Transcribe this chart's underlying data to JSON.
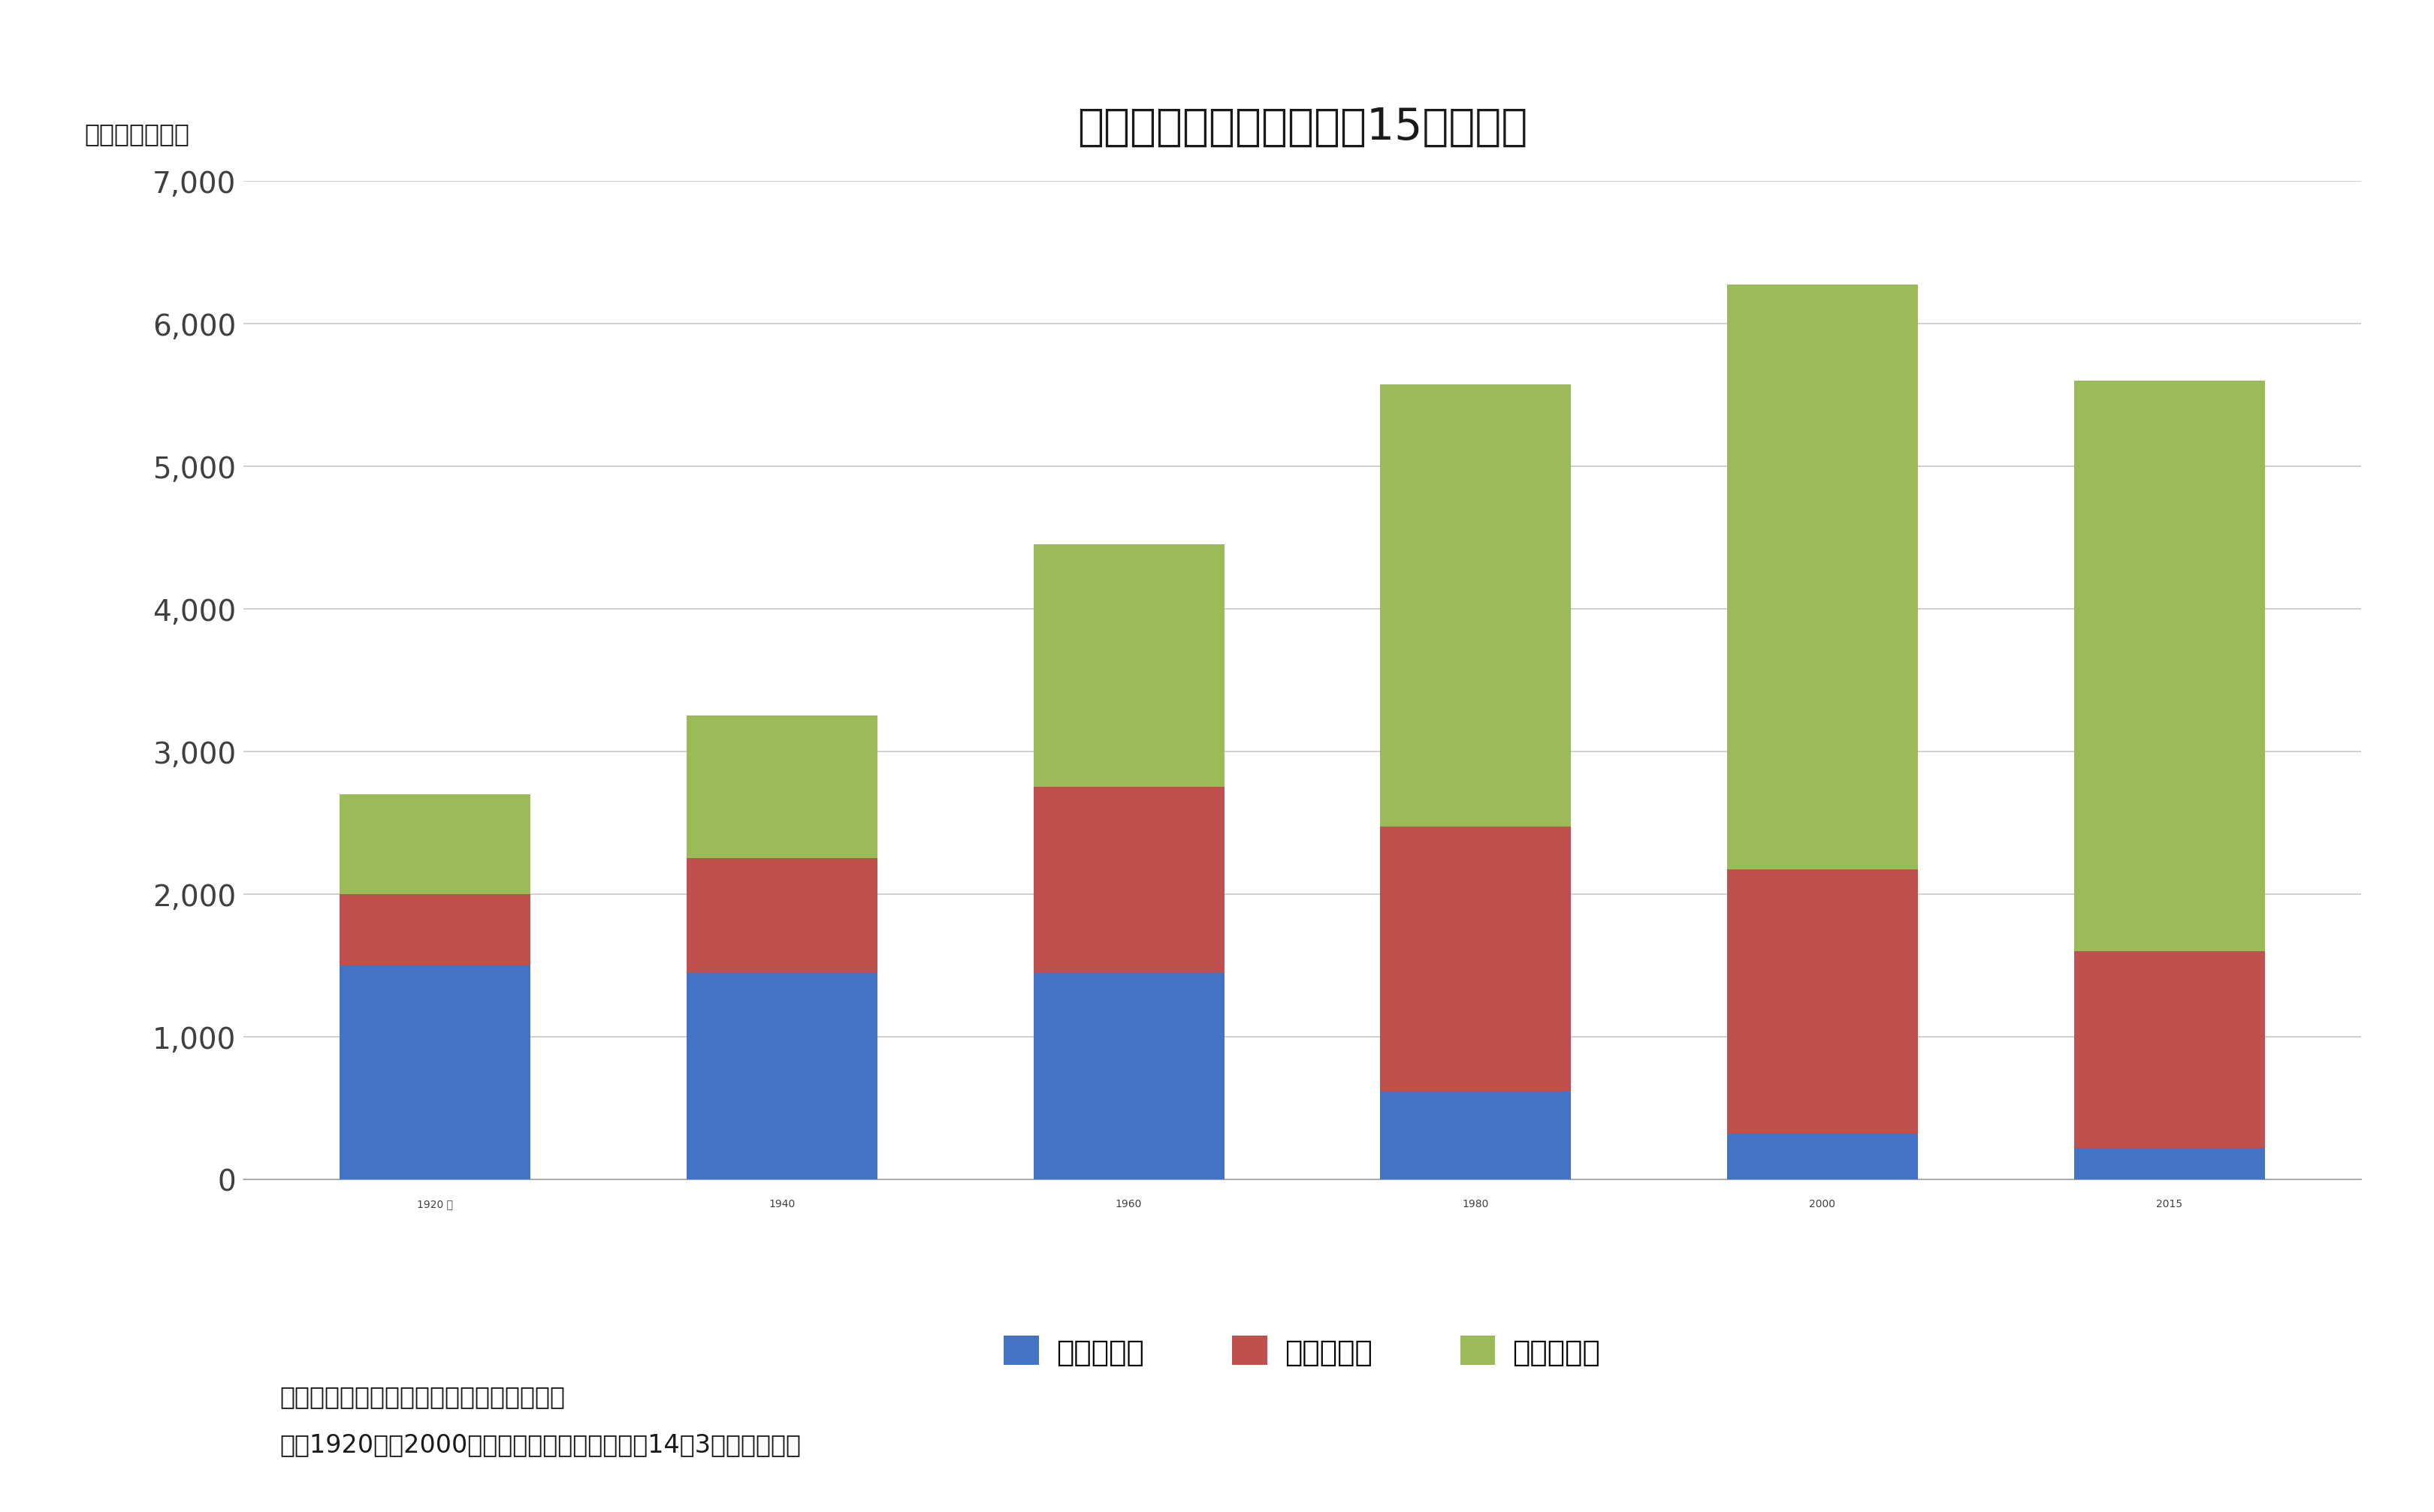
{
  "title": "産業別就業者数の変化（15歳以上）",
  "unit_label": "（単位：万人）",
  "categories": [
    "1920 年",
    "1940",
    "1960",
    "1980",
    "2000",
    "2015"
  ],
  "primary": [
    1500,
    1450,
    1450,
    620,
    320,
    220
  ],
  "secondary": [
    500,
    800,
    1300,
    1850,
    1850,
    1380
  ],
  "tertiary": [
    700,
    1000,
    1700,
    3100,
    4100,
    4000
  ],
  "color_primary": "#4472C4",
  "color_secondary": "#C0504D",
  "color_tertiary": "#9BBB59",
  "legend_labels": [
    "第１次産業",
    "第２次産業",
    "第３次産業"
  ],
  "ylim": [
    0,
    7000
  ],
  "yticks": [
    0,
    1000,
    2000,
    3000,
    4000,
    5000,
    6000,
    7000
  ],
  "ytick_labels": [
    "0",
    "1,000",
    "2,000",
    "3,000",
    "4,000",
    "5,000",
    "6,000",
    "7,000"
  ],
  "note_line1": "出典）总務省統計局「国勢調査」より作成",
  "note_line2": "注）1920年～2000年は産業（旧大分類）平成14年3月改訂前結果",
  "background_color": "#FFFFFF",
  "bar_width": 0.55,
  "title_fontsize": 42,
  "tick_fontsize": 28,
  "legend_fontsize": 28,
  "note_fontsize": 24,
  "unit_fontsize": 24
}
